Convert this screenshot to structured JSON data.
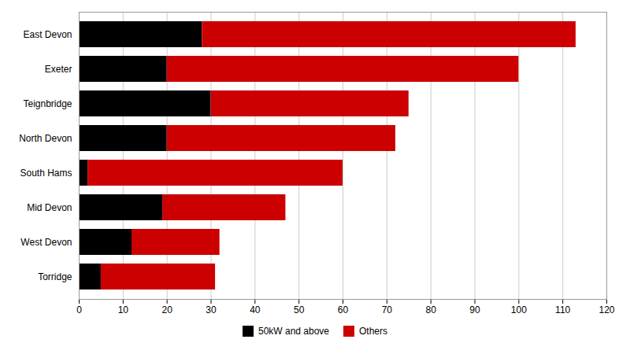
{
  "chart_data": {
    "type": "bar",
    "orientation": "horizontal",
    "stacked": true,
    "categories": [
      "East Devon",
      "Exeter",
      "Teignbridge",
      "North Devon",
      "South Hams",
      "Mid Devon",
      "West Devon",
      "Torridge"
    ],
    "series": [
      {
        "name": "50kW and above",
        "color": "#000000",
        "values": [
          28,
          20,
          30,
          20,
          2,
          19,
          12,
          5
        ]
      },
      {
        "name": "Others",
        "color": "#cc0000",
        "values": [
          85,
          80,
          45,
          52,
          58,
          28,
          20,
          26
        ]
      }
    ],
    "xlim": [
      0,
      120
    ],
    "xticks": [
      0,
      10,
      20,
      30,
      40,
      50,
      60,
      70,
      80,
      90,
      100,
      110,
      120
    ],
    "grid": true,
    "legend": "bottom"
  }
}
